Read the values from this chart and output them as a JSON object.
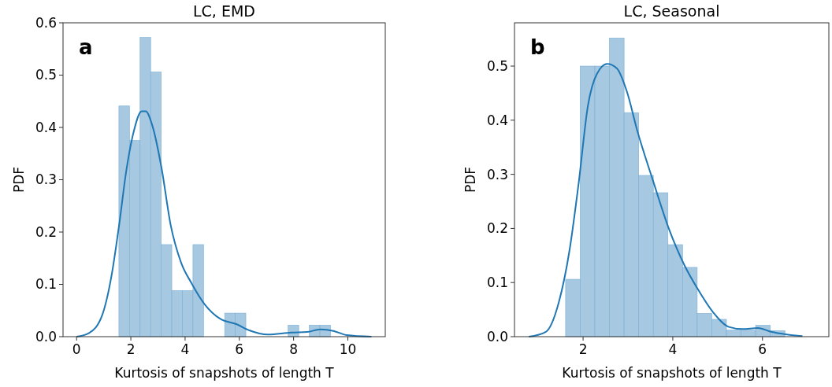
{
  "chart_data": [
    {
      "type": "histogram",
      "title": "LC, EMD",
      "xlabel": "Kurtosis of snapshots of length T",
      "ylabel": "PDF",
      "annotations": [
        "a"
      ],
      "color": "#a6c8e0",
      "bins": [
        1.56,
        1.95,
        2.34,
        2.73,
        3.12,
        3.51,
        3.9,
        4.29,
        4.68,
        5.07,
        5.46,
        5.85,
        6.24,
        6.63,
        7.02,
        7.41,
        7.8,
        8.19,
        8.58,
        8.97,
        9.36
      ],
      "values": [
        0.441,
        0.375,
        0.572,
        0.506,
        0.176,
        0.088,
        0.088,
        0.176,
        0,
        0,
        0.045,
        0.045,
        0,
        0,
        0,
        0,
        0.022,
        0,
        0.022,
        0.022
      ],
      "series": [
        {
          "type": "line",
          "color": "#1f77b4",
          "x": [
            0,
            0.46,
            0.95,
            1.29,
            1.58,
            1.82,
            2.11,
            2.4,
            2.55,
            2.79,
            3.13,
            3.47,
            3.85,
            4.24,
            4.72,
            5.3,
            5.89,
            6.37,
            7.05,
            7.92,
            8.5,
            8.98,
            9.47,
            9.95,
            10.87
          ],
          "values": [
            0,
            0.007,
            0.042,
            0.117,
            0.218,
            0.313,
            0.393,
            0.431,
            0.431,
            0.404,
            0.323,
            0.213,
            0.142,
            0.102,
            0.062,
            0.034,
            0.024,
            0.012,
            0.004,
            0.008,
            0.009,
            0.014,
            0.011,
            0.003,
            0
          ]
        }
      ],
      "xlim": [
        -0.5,
        11.38
      ],
      "xticks": [
        0,
        2,
        4,
        6,
        8,
        10
      ],
      "ylim": [
        0,
        0.6
      ],
      "yticks": [
        {
          "value": 0,
          "label": "0.0"
        },
        0.1,
        0.2,
        0.3,
        0.4,
        0.5,
        0.6
      ],
      "grid": false
    },
    {
      "type": "histogram",
      "title": "LC, Seasonal",
      "xlabel": "Kurtosis of snapshots of length T",
      "ylabel": "PDF",
      "annotations": [
        "b"
      ],
      "color": "#a6c8e0",
      "bins": [
        1.61,
        1.936,
        2.262,
        2.588,
        2.914,
        3.24,
        3.566,
        3.892,
        4.218,
        4.544,
        4.87,
        5.196,
        5.522,
        5.848,
        6.174,
        6.5
      ],
      "values": [
        0.106,
        0.5,
        0.5,
        0.552,
        0.414,
        0.298,
        0.266,
        0.17,
        0.128,
        0.043,
        0.032,
        0.012,
        0.012,
        0.021,
        0.011
      ],
      "series": [
        {
          "type": "line",
          "color": "#1f77b4",
          "x": [
            0.79,
            1.17,
            1.46,
            1.7,
            1.9,
            2.11,
            2.31,
            2.54,
            2.75,
            2.98,
            3.21,
            3.56,
            3.91,
            4.26,
            4.55,
            4.9,
            5.25,
            5.55,
            5.9,
            6.19,
            6.54,
            6.89
          ],
          "values": [
            0,
            0.009,
            0.064,
            0.161,
            0.283,
            0.428,
            0.486,
            0.504,
            0.496,
            0.452,
            0.38,
            0.288,
            0.2,
            0.132,
            0.089,
            0.045,
            0.018,
            0.014,
            0.016,
            0.009,
            0.004,
            0.001
          ]
        }
      ],
      "xlim": [
        0.47,
        7.48
      ],
      "xticks": [
        2,
        4,
        6
      ],
      "ylim": [
        0,
        0.58
      ],
      "yticks": [
        {
          "value": 0,
          "label": "0.0"
        },
        0.1,
        0.2,
        0.3,
        0.4,
        0.5
      ],
      "grid": false
    }
  ]
}
